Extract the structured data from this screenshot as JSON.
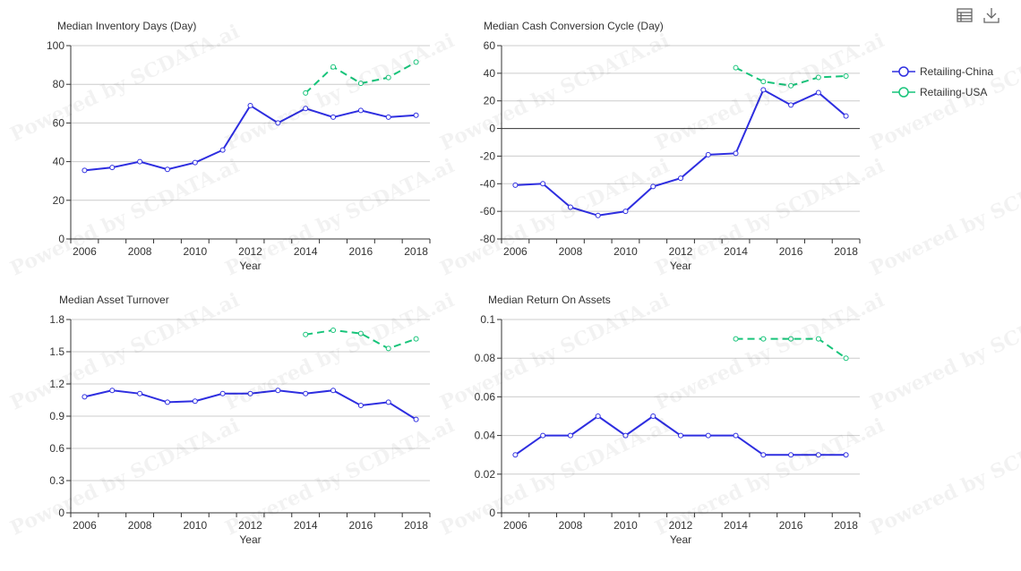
{
  "toolbar": {
    "data_view_icon": "table-icon",
    "download_icon": "download-icon"
  },
  "legend": [
    {
      "name": "Retailing-China",
      "color": "#2e2ee0"
    },
    {
      "name": "Retailing-USA",
      "color": "#17c47a"
    }
  ],
  "watermark_text": "Powered by SCDATA.ai",
  "chart_data": [
    {
      "type": "line",
      "title": "Median Inventory Days (Day)",
      "xlabel": "Year",
      "ylabel": "",
      "x": [
        2006,
        2007,
        2008,
        2009,
        2010,
        2011,
        2012,
        2013,
        2014,
        2015,
        2016,
        2017,
        2018
      ],
      "x_tick_labels": [
        "2006",
        "2008",
        "2010",
        "2012",
        "2014",
        "2016",
        "2018"
      ],
      "ylim": [
        0,
        100
      ],
      "y_ticks": [
        0,
        20,
        40,
        60,
        80,
        100
      ],
      "y_tick_labels": [
        "0",
        "20",
        "40",
        "60",
        "80",
        "100"
      ],
      "grid": true,
      "series": [
        {
          "name": "Retailing-China",
          "values": [
            35.5,
            37,
            40,
            36,
            39.5,
            46,
            69,
            60,
            67.5,
            63,
            66.5,
            63,
            64
          ]
        },
        {
          "name": "Retailing-USA",
          "values": [
            null,
            null,
            null,
            null,
            null,
            null,
            null,
            null,
            75.5,
            89,
            80.5,
            83.5,
            91.5
          ]
        }
      ]
    },
    {
      "type": "line",
      "title": "Median Cash Conversion Cycle (Day)",
      "xlabel": "Year",
      "ylabel": "",
      "x": [
        2006,
        2007,
        2008,
        2009,
        2010,
        2011,
        2012,
        2013,
        2014,
        2015,
        2016,
        2017,
        2018
      ],
      "x_tick_labels": [
        "2006",
        "2008",
        "2010",
        "2012",
        "2014",
        "2016",
        "2018"
      ],
      "ylim": [
        -80,
        60
      ],
      "y_ticks": [
        -80,
        -60,
        -40,
        -20,
        0,
        20,
        40,
        60
      ],
      "y_tick_labels": [
        "-80",
        "-60",
        "-40",
        "-20",
        "0",
        "20",
        "40",
        "60"
      ],
      "grid": true,
      "series": [
        {
          "name": "Retailing-China",
          "values": [
            -41,
            -40,
            -57,
            -63,
            -60,
            -42,
            -36,
            -19,
            -18,
            28,
            17,
            26,
            9
          ]
        },
        {
          "name": "Retailing-USA",
          "values": [
            null,
            null,
            null,
            null,
            null,
            null,
            null,
            null,
            44,
            34,
            31,
            37,
            38
          ]
        }
      ]
    },
    {
      "type": "line",
      "title": "Median Asset Turnover",
      "xlabel": "Year",
      "ylabel": "",
      "x": [
        2006,
        2007,
        2008,
        2009,
        2010,
        2011,
        2012,
        2013,
        2014,
        2015,
        2016,
        2017,
        2018
      ],
      "x_tick_labels": [
        "2006",
        "2008",
        "2010",
        "2012",
        "2014",
        "2016",
        "2018"
      ],
      "ylim": [
        0,
        1.8
      ],
      "y_ticks": [
        0,
        0.3,
        0.6,
        0.9,
        1.2,
        1.5,
        1.8
      ],
      "y_tick_labels": [
        "0",
        "0.3",
        "0.6",
        "0.9",
        "1.2",
        "1.5",
        "1.8"
      ],
      "grid": true,
      "series": [
        {
          "name": "Retailing-China",
          "values": [
            1.08,
            1.14,
            1.11,
            1.03,
            1.04,
            1.11,
            1.11,
            1.14,
            1.11,
            1.14,
            1.0,
            1.03,
            0.87
          ]
        },
        {
          "name": "Retailing-USA",
          "values": [
            null,
            null,
            null,
            null,
            null,
            null,
            null,
            null,
            1.66,
            1.7,
            1.67,
            1.53,
            1.62
          ]
        }
      ]
    },
    {
      "type": "line",
      "title": "Median Return On Assets",
      "xlabel": "Year",
      "ylabel": "",
      "x": [
        2006,
        2007,
        2008,
        2009,
        2010,
        2011,
        2012,
        2013,
        2014,
        2015,
        2016,
        2017,
        2018
      ],
      "x_tick_labels": [
        "2006",
        "2008",
        "2010",
        "2012",
        "2014",
        "2016",
        "2018"
      ],
      "ylim": [
        0,
        0.1
      ],
      "y_ticks": [
        0,
        0.02,
        0.04,
        0.06,
        0.08,
        0.1
      ],
      "y_tick_labels": [
        "0",
        "0.02",
        "0.04",
        "0.06",
        "0.08",
        "0.1"
      ],
      "grid": true,
      "series": [
        {
          "name": "Retailing-China",
          "values": [
            0.03,
            0.04,
            0.04,
            0.05,
            0.04,
            0.05,
            0.04,
            0.04,
            0.04,
            0.03,
            0.03,
            0.03,
            0.03
          ]
        },
        {
          "name": "Retailing-USA",
          "values": [
            null,
            null,
            null,
            null,
            null,
            null,
            null,
            null,
            0.09,
            0.09,
            0.09,
            0.09,
            0.08
          ]
        }
      ]
    }
  ]
}
